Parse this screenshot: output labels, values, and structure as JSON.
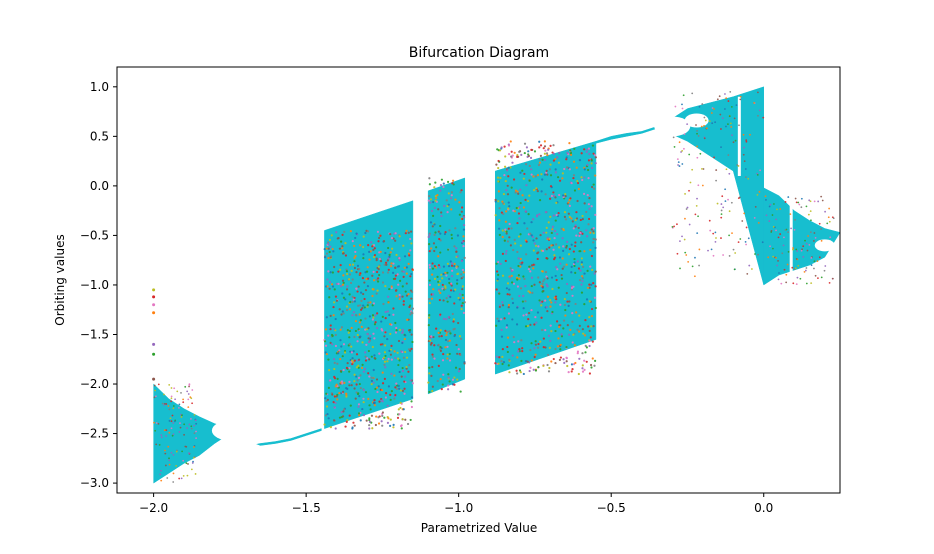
{
  "chart_data": {
    "type": "scatter",
    "title": "Bifurcation Diagram",
    "xlabel": "Parametrized Value",
    "ylabel": "Orbiting values",
    "xlim": [
      -2.12,
      0.25
    ],
    "ylim": [
      -3.1,
      1.2
    ],
    "xticks": [
      {
        "value": -2.0,
        "label": "−2.0"
      },
      {
        "value": -1.5,
        "label": "−1.5"
      },
      {
        "value": -1.0,
        "label": "−1.0"
      },
      {
        "value": -0.5,
        "label": "−0.5"
      },
      {
        "value": 0.0,
        "label": "0.0"
      }
    ],
    "yticks": [
      {
        "value": 1.0,
        "label": "1.0"
      },
      {
        "value": 0.5,
        "label": "0.5"
      },
      {
        "value": 0.0,
        "label": "0.0"
      },
      {
        "value": -0.5,
        "label": "−0.5"
      },
      {
        "value": -1.0,
        "label": "−1.0"
      },
      {
        "value": -1.5,
        "label": "−1.5"
      },
      {
        "value": -2.0,
        "label": "−2.0"
      },
      {
        "value": -2.5,
        "label": "−2.5"
      },
      {
        "value": -3.0,
        "label": "−3.0"
      }
    ],
    "grid": false,
    "legend": "none",
    "colors": {
      "main": "#17becf",
      "scatter_accents": [
        "#bcbd22",
        "#d62728",
        "#e377c2",
        "#ff7f0e",
        "#9467bd",
        "#2ca02c",
        "#8c564b",
        "#1f77b4",
        "#7f7f7f"
      ]
    },
    "series": [
      {
        "role": "left-bifurcation-region",
        "points": [
          [
            -2.0,
            -2.0
          ],
          [
            -2.0,
            -3.0
          ],
          [
            -1.95,
            -2.15
          ],
          [
            -1.95,
            -2.9
          ],
          [
            -1.9,
            -2.25
          ],
          [
            -1.9,
            -2.8
          ],
          [
            -1.85,
            -2.33
          ],
          [
            -1.85,
            -2.72
          ],
          [
            -1.8,
            -2.4
          ],
          [
            -1.8,
            -2.6
          ],
          [
            -1.75,
            -2.45
          ],
          [
            -1.75,
            -2.5
          ],
          [
            -1.7,
            -2.52
          ],
          [
            -1.65,
            -2.6
          ],
          [
            -1.6,
            -2.58
          ],
          [
            -1.55,
            -2.55
          ],
          [
            -1.5,
            -2.5
          ],
          [
            -1.45,
            -2.45
          ]
        ]
      },
      {
        "role": "chaotic-band-1",
        "points": [
          [
            -1.44,
            -0.45
          ],
          [
            -1.44,
            -2.45
          ],
          [
            -1.3,
            -0.35
          ],
          [
            -1.3,
            -2.35
          ],
          [
            -1.15,
            -0.15
          ],
          [
            -1.15,
            -2.15
          ]
        ]
      },
      {
        "role": "chaotic-band-2",
        "points": [
          [
            -1.1,
            -0.05
          ],
          [
            -1.1,
            -2.1
          ],
          [
            -0.98,
            0.08
          ],
          [
            -0.98,
            -1.95
          ]
        ]
      },
      {
        "role": "chaotic-band-3",
        "points": [
          [
            -0.88,
            0.15
          ],
          [
            -0.88,
            -1.9
          ],
          [
            -0.55,
            0.45
          ],
          [
            -0.55,
            -1.55
          ]
        ]
      },
      {
        "role": "right-bifurcation-region",
        "points": [
          [
            -0.5,
            0.5
          ],
          [
            -0.4,
            0.55
          ],
          [
            -0.35,
            0.6
          ],
          [
            -0.3,
            0.68
          ],
          [
            -0.3,
            0.52
          ],
          [
            -0.25,
            0.78
          ],
          [
            -0.25,
            0.45
          ],
          [
            -0.2,
            0.82
          ],
          [
            -0.2,
            0.35
          ],
          [
            -0.1,
            0.9
          ],
          [
            -0.1,
            0.15
          ],
          [
            0.0,
            1.0
          ],
          [
            0.0,
            -1.0
          ],
          [
            0.05,
            -0.1
          ],
          [
            0.05,
            -0.9
          ],
          [
            0.1,
            -0.25
          ],
          [
            0.1,
            -0.85
          ],
          [
            0.15,
            -0.35
          ],
          [
            0.15,
            -0.8
          ],
          [
            0.2,
            -0.43
          ],
          [
            0.2,
            -0.72
          ],
          [
            0.25,
            -0.47
          ]
        ]
      }
    ],
    "outliers": [
      {
        "x": -2.0,
        "y": -1.05
      },
      {
        "x": -2.0,
        "y": -1.12
      },
      {
        "x": -2.0,
        "y": -1.2
      },
      {
        "x": -2.0,
        "y": -1.28
      },
      {
        "x": -2.0,
        "y": -1.6
      },
      {
        "x": -2.0,
        "y": -1.7
      },
      {
        "x": -2.0,
        "y": -1.95
      }
    ]
  }
}
